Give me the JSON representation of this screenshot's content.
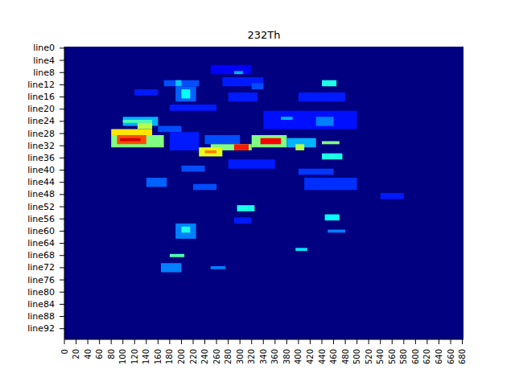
{
  "chart_data": {
    "type": "heatmap",
    "title": "232Th",
    "xlim": [
      0,
      682
    ],
    "xticks": [
      0,
      20,
      40,
      60,
      80,
      100,
      120,
      140,
      160,
      180,
      200,
      220,
      240,
      260,
      280,
      300,
      320,
      340,
      360,
      380,
      400,
      420,
      440,
      460,
      480,
      500,
      520,
      540,
      560,
      580,
      600,
      620,
      640,
      660,
      680
    ],
    "ylim": [
      96,
      0
    ],
    "yticks": [
      {
        "value": 0.5,
        "label": "line0"
      },
      {
        "value": 4.5,
        "label": "line4"
      },
      {
        "value": 8.5,
        "label": "line8"
      },
      {
        "value": 12.5,
        "label": "line12"
      },
      {
        "value": 16.5,
        "label": "line16"
      },
      {
        "value": 20.5,
        "label": "line20"
      },
      {
        "value": 24.5,
        "label": "line24"
      },
      {
        "value": 28.5,
        "label": "line28"
      },
      {
        "value": 32.5,
        "label": "line32"
      },
      {
        "value": 36.5,
        "label": "line36"
      },
      {
        "value": 40.5,
        "label": "line40"
      },
      {
        "value": 44.5,
        "label": "line44"
      },
      {
        "value": 48.5,
        "label": "line48"
      },
      {
        "value": 52.5,
        "label": "line52"
      },
      {
        "value": 56.5,
        "label": "line56"
      },
      {
        "value": 60.5,
        "label": "line60"
      },
      {
        "value": 64.5,
        "label": "line64"
      },
      {
        "value": 68.5,
        "label": "line68"
      },
      {
        "value": 72.5,
        "label": "line72"
      },
      {
        "value": 76.5,
        "label": "line76"
      },
      {
        "value": 80.5,
        "label": "line80"
      },
      {
        "value": 84.5,
        "label": "line84"
      },
      {
        "value": 88.5,
        "label": "line88"
      },
      {
        "value": 92.5,
        "label": "line92"
      }
    ],
    "zlim": [
      0,
      1
    ],
    "cells": [
      {
        "y": [
          6,
          9
        ],
        "x": [
          250,
          320
        ],
        "value": 0.12
      },
      {
        "y": [
          8,
          9
        ],
        "x": [
          290,
          305
        ],
        "value": 0.3
      },
      {
        "y": [
          11,
          13
        ],
        "x": [
          170,
          230
        ],
        "value": 0.2
      },
      {
        "y": [
          11,
          13
        ],
        "x": [
          190,
          200
        ],
        "value": 0.32
      },
      {
        "y": [
          10,
          13
        ],
        "x": [
          270,
          340
        ],
        "value": 0.15
      },
      {
        "y": [
          11,
          13
        ],
        "x": [
          440,
          465
        ],
        "value": 0.4
      },
      {
        "y": [
          12,
          14
        ],
        "x": [
          320,
          340
        ],
        "value": 0.2
      },
      {
        "y": [
          13,
          18
        ],
        "x": [
          190,
          225
        ],
        "value": 0.22
      },
      {
        "y": [
          14,
          17
        ],
        "x": [
          200,
          215
        ],
        "value": 0.38
      },
      {
        "y": [
          15,
          18
        ],
        "x": [
          280,
          330
        ],
        "value": 0.15
      },
      {
        "y": [
          15,
          18
        ],
        "x": [
          400,
          480
        ],
        "value": 0.15
      },
      {
        "y": [
          14,
          16
        ],
        "x": [
          120,
          160
        ],
        "value": 0.15
      },
      {
        "y": [
          19,
          21
        ],
        "x": [
          180,
          260
        ],
        "value": 0.15
      },
      {
        "y": [
          21,
          27
        ],
        "x": [
          340,
          500
        ],
        "value": 0.14
      },
      {
        "y": [
          23,
          24
        ],
        "x": [
          370,
          390
        ],
        "value": 0.3
      },
      {
        "y": [
          23,
          26
        ],
        "x": [
          430,
          460
        ],
        "value": 0.25
      },
      {
        "y": [
          23,
          26
        ],
        "x": [
          100,
          160
        ],
        "value": 0.3
      },
      {
        "y": [
          24,
          25
        ],
        "x": [
          100,
          150
        ],
        "value": 0.45
      },
      {
        "y": [
          25,
          27
        ],
        "x": [
          125,
          150
        ],
        "value": 0.55
      },
      {
        "y": [
          26,
          28
        ],
        "x": [
          160,
          200
        ],
        "value": 0.2
      },
      {
        "y": [
          27,
          29
        ],
        "x": [
          80,
          150
        ],
        "value": 0.65
      },
      {
        "y": [
          29,
          33
        ],
        "x": [
          80,
          170
        ],
        "value": 0.5
      },
      {
        "y": [
          29,
          32
        ],
        "x": [
          90,
          140
        ],
        "value": 0.8
      },
      {
        "y": [
          30,
          31
        ],
        "x": [
          95,
          130
        ],
        "value": 0.92
      },
      {
        "y": [
          28,
          34
        ],
        "x": [
          180,
          230
        ],
        "value": 0.15
      },
      {
        "y": [
          29,
          32
        ],
        "x": [
          240,
          300
        ],
        "value": 0.2
      },
      {
        "y": [
          32,
          34
        ],
        "x": [
          250,
          320
        ],
        "value": 0.5
      },
      {
        "y": [
          32,
          34
        ],
        "x": [
          290,
          315
        ],
        "value": 0.85
      },
      {
        "y": [
          33,
          36
        ],
        "x": [
          230,
          270
        ],
        "value": 0.6
      },
      {
        "y": [
          34,
          35
        ],
        "x": [
          240,
          260
        ],
        "value": 0.75
      },
      {
        "y": [
          29,
          33
        ],
        "x": [
          320,
          380
        ],
        "value": 0.5
      },
      {
        "y": [
          30,
          32
        ],
        "x": [
          335,
          370
        ],
        "value": 0.88
      },
      {
        "y": [
          30,
          33
        ],
        "x": [
          380,
          430
        ],
        "value": 0.3
      },
      {
        "y": [
          32,
          34
        ],
        "x": [
          395,
          410
        ],
        "value": 0.55
      },
      {
        "y": [
          31,
          32
        ],
        "x": [
          440,
          470
        ],
        "value": 0.5
      },
      {
        "y": [
          35,
          37
        ],
        "x": [
          440,
          475
        ],
        "value": 0.4
      },
      {
        "y": [
          37,
          40
        ],
        "x": [
          280,
          360
        ],
        "value": 0.15
      },
      {
        "y": [
          39,
          41
        ],
        "x": [
          200,
          240
        ],
        "value": 0.2
      },
      {
        "y": [
          40,
          42
        ],
        "x": [
          400,
          460
        ],
        "value": 0.18
      },
      {
        "y": [
          43,
          46
        ],
        "x": [
          140,
          175
        ],
        "value": 0.22
      },
      {
        "y": [
          45,
          47
        ],
        "x": [
          220,
          260
        ],
        "value": 0.2
      },
      {
        "y": [
          43,
          47
        ],
        "x": [
          410,
          500
        ],
        "value": 0.17
      },
      {
        "y": [
          48,
          50
        ],
        "x": [
          540,
          580
        ],
        "value": 0.15
      },
      {
        "y": [
          52,
          54
        ],
        "x": [
          295,
          325
        ],
        "value": 0.4
      },
      {
        "y": [
          55,
          57
        ],
        "x": [
          445,
          470
        ],
        "value": 0.38
      },
      {
        "y": [
          56,
          58
        ],
        "x": [
          290,
          320
        ],
        "value": 0.15
      },
      {
        "y": [
          58,
          63
        ],
        "x": [
          190,
          225
        ],
        "value": 0.25
      },
      {
        "y": [
          59,
          61
        ],
        "x": [
          200,
          215
        ],
        "value": 0.4
      },
      {
        "y": [
          60,
          61
        ],
        "x": [
          450,
          480
        ],
        "value": 0.25
      },
      {
        "y": [
          66,
          67
        ],
        "x": [
          395,
          415
        ],
        "value": 0.35
      },
      {
        "y": [
          68,
          69
        ],
        "x": [
          180,
          205
        ],
        "value": 0.45
      },
      {
        "y": [
          71,
          74
        ],
        "x": [
          165,
          200
        ],
        "value": 0.25
      },
      {
        "y": [
          72,
          73
        ],
        "x": [
          250,
          275
        ],
        "value": 0.25
      }
    ]
  }
}
